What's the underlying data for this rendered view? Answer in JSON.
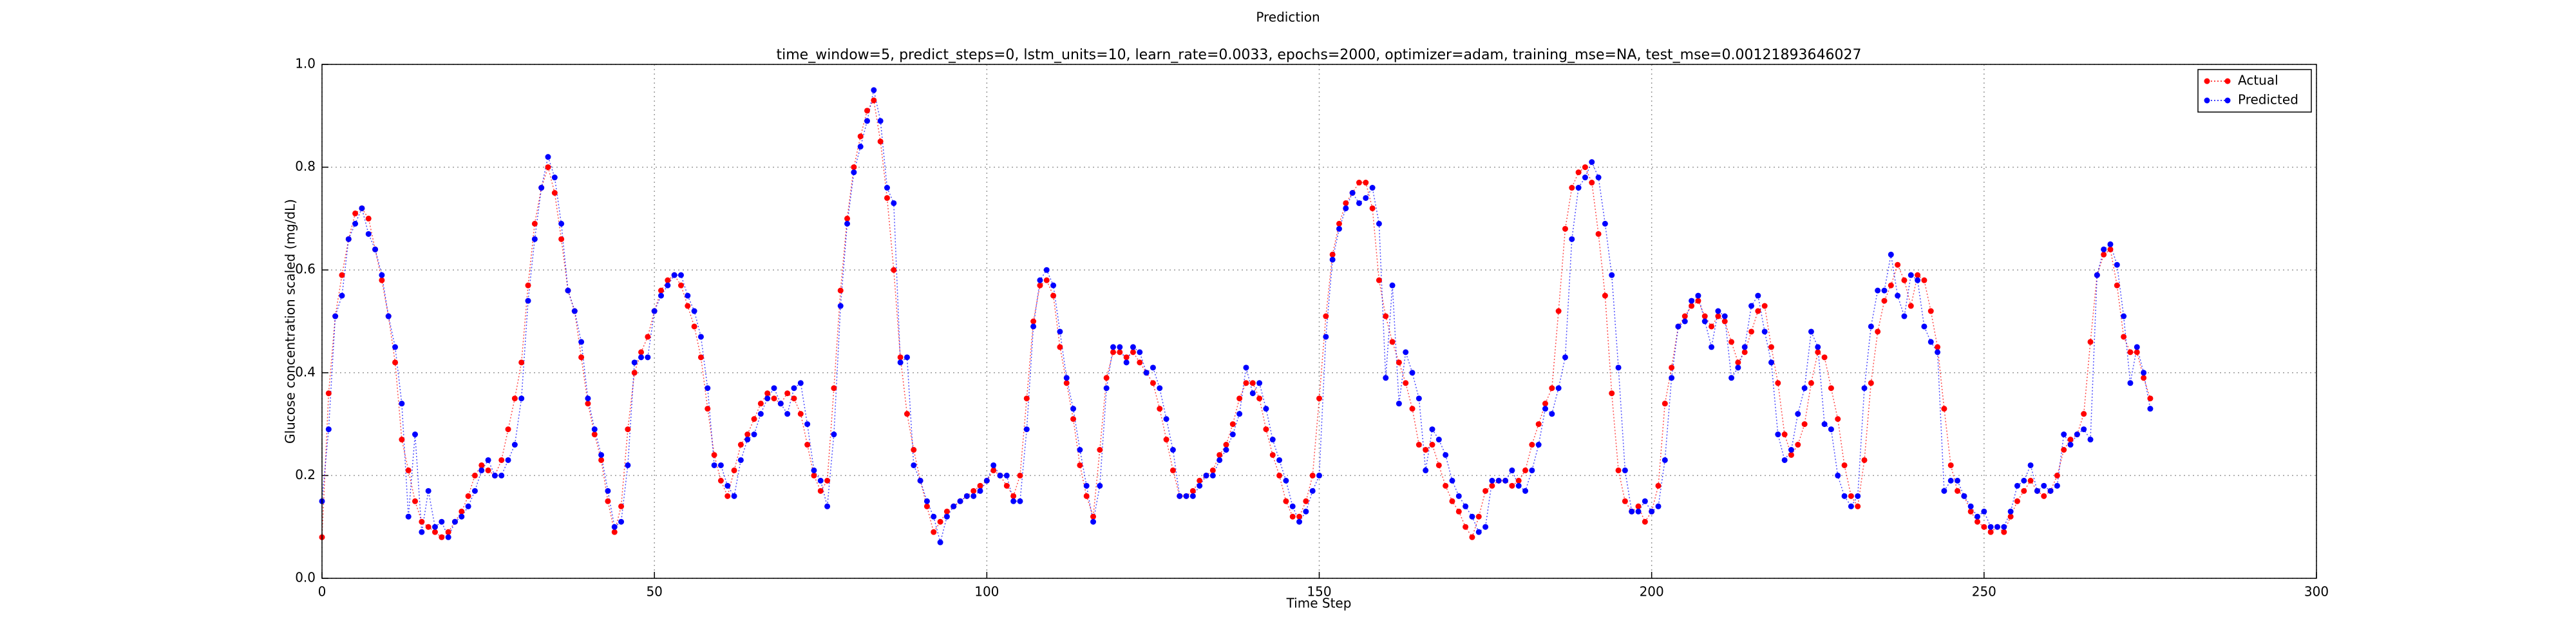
{
  "chart_data": {
    "type": "line",
    "title": "Prediction",
    "subtitle": "time_window=5, predict_steps=0, lstm_units=10, learn_rate=0.0033, epochs=2000, optimizer=adam, training_mse=NA, test_mse=0.00121893646027",
    "x_label": "Time Step",
    "y_label": "Glucose concentration scaled (mg/dL)",
    "x": [
      0,
      1,
      2,
      3,
      4,
      5,
      6,
      7,
      8,
      9,
      10,
      11,
      12,
      13,
      14,
      15,
      16,
      17,
      18,
      19,
      20,
      21,
      22,
      23,
      24,
      25,
      26,
      27,
      28,
      29,
      30,
      31,
      32,
      33,
      34,
      35,
      36,
      37,
      38,
      39,
      40,
      41,
      42,
      43,
      44,
      45,
      46,
      47,
      48,
      49,
      50,
      51,
      52,
      53,
      54,
      55,
      56,
      57,
      58,
      59,
      60,
      61,
      62,
      63,
      64,
      65,
      66,
      67,
      68,
      69,
      70,
      71,
      72,
      73,
      74,
      75,
      76,
      77,
      78,
      79,
      80,
      81,
      82,
      83,
      84,
      85,
      86,
      87,
      88,
      89,
      90,
      91,
      92,
      93,
      94,
      95,
      96,
      97,
      98,
      99,
      100,
      101,
      102,
      103,
      104,
      105,
      106,
      107,
      108,
      109,
      110,
      111,
      112,
      113,
      114,
      115,
      116,
      117,
      118,
      119,
      120,
      121,
      122,
      123,
      124,
      125,
      126,
      127,
      128,
      129,
      130,
      131,
      132,
      133,
      134,
      135,
      136,
      137,
      138,
      139,
      140,
      141,
      142,
      143,
      144,
      145,
      146,
      147,
      148,
      149,
      150,
      151,
      152,
      153,
      154,
      155,
      156,
      157,
      158,
      159,
      160,
      161,
      162,
      163,
      164,
      165,
      166,
      167,
      168,
      169,
      170,
      171,
      172,
      173,
      174,
      175,
      176,
      177,
      178,
      179,
      180,
      181,
      182,
      183,
      184,
      185,
      186,
      187,
      188,
      189,
      190,
      191,
      192,
      193,
      194,
      195,
      196,
      197,
      198,
      199,
      200,
      201,
      202,
      203,
      204,
      205,
      206,
      207,
      208,
      209,
      210,
      211,
      212,
      213,
      214,
      215,
      216,
      217,
      218,
      219,
      220,
      221,
      222,
      223,
      224,
      225,
      226,
      227,
      228,
      229,
      230,
      231,
      232,
      233,
      234,
      235,
      236,
      237,
      238,
      239,
      240,
      241,
      242,
      243,
      244,
      245,
      246,
      247,
      248,
      249,
      250,
      251,
      252,
      253,
      254,
      255,
      256,
      257,
      258,
      259,
      260,
      261,
      262,
      263,
      264,
      265,
      266,
      267,
      268,
      269,
      270,
      271,
      272,
      273,
      274,
      275
    ],
    "series": [
      {
        "name": "Actual",
        "color": "#ff0000",
        "values": [
          0.08,
          0.36,
          0.51,
          0.59,
          0.66,
          0.71,
          0.72,
          0.7,
          0.64,
          0.58,
          0.51,
          0.42,
          0.27,
          0.21,
          0.15,
          0.11,
          0.1,
          0.09,
          0.08,
          0.09,
          0.11,
          0.13,
          0.16,
          0.2,
          0.22,
          0.21,
          0.2,
          0.23,
          0.29,
          0.35,
          0.42,
          0.57,
          0.69,
          0.76,
          0.8,
          0.75,
          0.66,
          0.56,
          0.52,
          0.43,
          0.34,
          0.28,
          0.23,
          0.15,
          0.09,
          0.14,
          0.29,
          0.4,
          0.44,
          0.47,
          0.52,
          0.56,
          0.58,
          0.59,
          0.57,
          0.53,
          0.49,
          0.43,
          0.33,
          0.24,
          0.19,
          0.16,
          0.21,
          0.26,
          0.28,
          0.31,
          0.34,
          0.36,
          0.35,
          0.34,
          0.36,
          0.35,
          0.32,
          0.26,
          0.2,
          0.17,
          0.19,
          0.37,
          0.56,
          0.7,
          0.8,
          0.86,
          0.91,
          0.93,
          0.85,
          0.74,
          0.6,
          0.43,
          0.32,
          0.25,
          0.19,
          0.14,
          0.09,
          0.11,
          0.13,
          0.14,
          0.15,
          0.16,
          0.17,
          0.18,
          0.19,
          0.21,
          0.2,
          0.18,
          0.16,
          0.2,
          0.35,
          0.5,
          0.57,
          0.58,
          0.55,
          0.45,
          0.38,
          0.31,
          0.22,
          0.16,
          0.12,
          0.25,
          0.39,
          0.44,
          0.44,
          0.43,
          0.44,
          0.42,
          0.4,
          0.38,
          0.33,
          0.27,
          0.21,
          0.16,
          0.16,
          0.17,
          0.19,
          0.2,
          0.21,
          0.24,
          0.26,
          0.3,
          0.35,
          0.38,
          0.38,
          0.35,
          0.29,
          0.24,
          0.2,
          0.15,
          0.12,
          0.12,
          0.15,
          0.2,
          0.35,
          0.51,
          0.63,
          0.69,
          0.73,
          0.75,
          0.77,
          0.77,
          0.72,
          0.58,
          0.51,
          0.46,
          0.42,
          0.38,
          0.33,
          0.26,
          0.25,
          0.26,
          0.22,
          0.18,
          0.15,
          0.13,
          0.1,
          0.08,
          0.12,
          0.17,
          0.18,
          0.19,
          0.19,
          0.18,
          0.19,
          0.21,
          0.26,
          0.3,
          0.34,
          0.37,
          0.52,
          0.68,
          0.76,
          0.79,
          0.8,
          0.77,
          0.67,
          0.55,
          0.36,
          0.21,
          0.15,
          0.13,
          0.14,
          0.11,
          0.13,
          0.18,
          0.34,
          0.41,
          0.49,
          0.51,
          0.53,
          0.54,
          0.51,
          0.49,
          0.51,
          0.5,
          0.46,
          0.42,
          0.44,
          0.48,
          0.52,
          0.53,
          0.45,
          0.38,
          0.28,
          0.24,
          0.26,
          0.3,
          0.38,
          0.44,
          0.43,
          0.37,
          0.31,
          0.22,
          0.16,
          0.14,
          0.23,
          0.38,
          0.48,
          0.54,
          0.57,
          0.61,
          0.58,
          0.53,
          0.59,
          0.58,
          0.52,
          0.45,
          0.33,
          0.22,
          0.17,
          0.16,
          0.13,
          0.11,
          0.1,
          0.09,
          0.1,
          0.09,
          0.12,
          0.15,
          0.17,
          0.19,
          0.17,
          0.16,
          0.17,
          0.2,
          0.25,
          0.27,
          0.28,
          0.32,
          0.46,
          0.59,
          0.63,
          0.64,
          0.57,
          0.47,
          0.44,
          0.44,
          0.39,
          0.35
        ]
      },
      {
        "name": "Predicted",
        "color": "#0000ff",
        "values": [
          0.15,
          0.29,
          0.51,
          0.55,
          0.66,
          0.69,
          0.72,
          0.67,
          0.64,
          0.59,
          0.51,
          0.45,
          0.34,
          0.12,
          0.28,
          0.09,
          0.17,
          0.1,
          0.11,
          0.08,
          0.11,
          0.12,
          0.14,
          0.17,
          0.21,
          0.23,
          0.2,
          0.2,
          0.23,
          0.26,
          0.35,
          0.54,
          0.66,
          0.76,
          0.82,
          0.78,
          0.69,
          0.56,
          0.52,
          0.46,
          0.35,
          0.29,
          0.24,
          0.17,
          0.1,
          0.11,
          0.22,
          0.42,
          0.43,
          0.43,
          0.52,
          0.55,
          0.57,
          0.59,
          0.59,
          0.55,
          0.52,
          0.47,
          0.37,
          0.22,
          0.22,
          0.18,
          0.16,
          0.23,
          0.27,
          0.28,
          0.32,
          0.35,
          0.37,
          0.34,
          0.32,
          0.37,
          0.38,
          0.3,
          0.21,
          0.19,
          0.14,
          0.28,
          0.53,
          0.69,
          0.79,
          0.84,
          0.89,
          0.95,
          0.89,
          0.76,
          0.73,
          0.42,
          0.43,
          0.22,
          0.19,
          0.15,
          0.12,
          0.07,
          0.12,
          0.14,
          0.15,
          0.16,
          0.16,
          0.17,
          0.19,
          0.22,
          0.2,
          0.2,
          0.15,
          0.15,
          0.29,
          0.49,
          0.58,
          0.6,
          0.57,
          0.48,
          0.39,
          0.33,
          0.25,
          0.18,
          0.11,
          0.18,
          0.37,
          0.45,
          0.45,
          0.42,
          0.45,
          0.44,
          0.4,
          0.41,
          0.37,
          0.31,
          0.25,
          0.16,
          0.16,
          0.16,
          0.18,
          0.2,
          0.2,
          0.23,
          0.25,
          0.28,
          0.32,
          0.41,
          0.36,
          0.38,
          0.33,
          0.27,
          0.23,
          0.19,
          0.14,
          0.11,
          0.13,
          0.17,
          0.2,
          0.47,
          0.62,
          0.68,
          0.72,
          0.75,
          0.73,
          0.74,
          0.76,
          0.69,
          0.39,
          0.57,
          0.34,
          0.44,
          0.4,
          0.35,
          0.21,
          0.29,
          0.27,
          0.24,
          0.19,
          0.16,
          0.14,
          0.12,
          0.09,
          0.1,
          0.19,
          0.19,
          0.19,
          0.21,
          0.18,
          0.17,
          0.21,
          0.26,
          0.33,
          0.32,
          0.37,
          0.43,
          0.66,
          0.76,
          0.78,
          0.81,
          0.78,
          0.69,
          0.59,
          0.41,
          0.21,
          0.13,
          0.13,
          0.15,
          0.13,
          0.14,
          0.23,
          0.39,
          0.49,
          0.5,
          0.54,
          0.55,
          0.5,
          0.45,
          0.52,
          0.51,
          0.39,
          0.41,
          0.45,
          0.53,
          0.55,
          0.48,
          0.42,
          0.28,
          0.23,
          0.25,
          0.32,
          0.37,
          0.48,
          0.45,
          0.3,
          0.29,
          0.2,
          0.16,
          0.14,
          0.16,
          0.37,
          0.49,
          0.56,
          0.56,
          0.63,
          0.55,
          0.51,
          0.59,
          0.58,
          0.49,
          0.46,
          0.44,
          0.17,
          0.19,
          0.19,
          0.16,
          0.14,
          0.12,
          0.13,
          0.1,
          0.1,
          0.1,
          0.13,
          0.18,
          0.19,
          0.22,
          0.17,
          0.18,
          0.17,
          0.18,
          0.28,
          0.26,
          0.28,
          0.29,
          0.27,
          0.59,
          0.64,
          0.65,
          0.61,
          0.51,
          0.38,
          0.45,
          0.4,
          0.33
        ]
      }
    ],
    "xlim": [
      0,
      300
    ],
    "xticks": [
      0,
      50,
      100,
      150,
      200,
      250,
      300
    ],
    "ylim": [
      0,
      1
    ],
    "yticks": [
      {
        "value": 0,
        "label": "0.0"
      },
      {
        "value": 0.2,
        "label": "0.2"
      },
      {
        "value": 0.4,
        "label": "0.4"
      },
      {
        "value": 0.6,
        "label": "0.6"
      },
      {
        "value": 0.8,
        "label": "0.8"
      },
      {
        "value": 1,
        "label": "1.0"
      }
    ],
    "grid": true,
    "legend": "upper right"
  }
}
